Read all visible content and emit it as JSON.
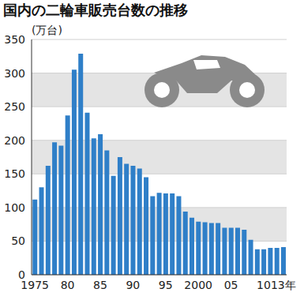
{
  "chart_data": {
    "type": "bar",
    "title": "国内の二輪車販売台数の推移",
    "y_label": "(万台)",
    "categories": [
      "1975",
      null,
      null,
      null,
      null,
      "80",
      null,
      null,
      null,
      null,
      "85",
      null,
      null,
      null,
      null,
      "90",
      null,
      null,
      null,
      null,
      "95",
      null,
      null,
      null,
      null,
      "2000",
      null,
      null,
      null,
      null,
      "05",
      null,
      null,
      null,
      null,
      "10",
      null,
      null,
      "13年"
    ],
    "values": [
      112,
      130,
      162,
      197,
      192,
      237,
      305,
      329,
      241,
      203,
      209,
      185,
      147,
      175,
      165,
      162,
      158,
      145,
      117,
      122,
      121,
      121,
      117,
      94,
      85,
      79,
      78,
      77,
      77,
      70,
      70,
      70,
      67,
      52,
      38,
      38,
      40,
      40,
      41
    ],
    "color": "#2f7fc8",
    "ylim": [
      0,
      350
    ],
    "yticks": [
      0,
      50,
      100,
      150,
      200,
      250,
      300,
      350
    ],
    "grid": true
  }
}
